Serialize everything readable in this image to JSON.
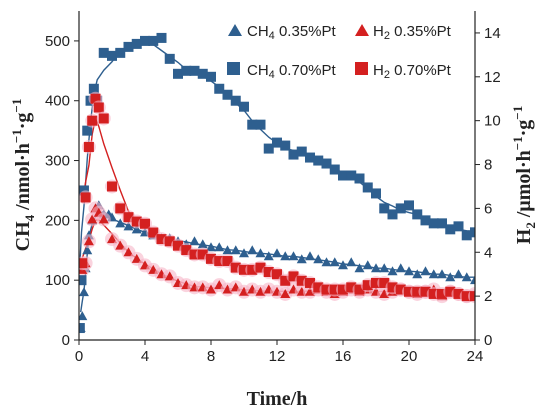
{
  "chart_data": {
    "type": "scatter",
    "x_axis": {
      "label": "Time/h",
      "range": [
        0,
        24
      ],
      "ticks": [
        "0",
        "4",
        "8",
        "12",
        "16",
        "20",
        "24"
      ]
    },
    "y_left": {
      "label_main": "CH",
      "label_sub": "4",
      "label_rest": " /nmol·h",
      "label_sup1": "−1",
      "label_mid": "·g",
      "label_sup2": "−1",
      "range": [
        0,
        550
      ],
      "ticks": [
        "0",
        "100",
        "200",
        "300",
        "400",
        "500"
      ]
    },
    "y_right": {
      "label_main": "H",
      "label_sub": "2",
      "label_rest": " /μmol·h",
      "label_sup1": "−1",
      "label_mid": "·g",
      "label_sup2": "−1",
      "range": [
        0,
        15
      ],
      "ticks": [
        "0",
        "2",
        "4",
        "6",
        "8",
        "10",
        "12",
        "14"
      ]
    },
    "legend": [
      {
        "label": "CH4 0.35%Pt",
        "main": "CH",
        "sub": "4",
        "rest": " 0.35%Pt"
      },
      {
        "label": "H2 0.35%Pt",
        "main": "H",
        "sub": "2",
        "rest": " 0.35%Pt"
      },
      {
        "label": "CH4 0.70%Pt",
        "main": "CH",
        "sub": "4",
        "rest": " 0.70%Pt"
      },
      {
        "label": "H2 0.70%Pt",
        "main": "H",
        "sub": "2",
        "rest": " 0.70%Pt"
      }
    ],
    "legend_placement": "top-right",
    "colors": {
      "ch4": "#2e5f8f",
      "h2": "#d42020",
      "h2_halo": "#f7b6c8"
    },
    "series": [
      {
        "name": "CH4 0.35%Pt",
        "axis": "left",
        "marker": "triangle",
        "color": "#2e5f8f",
        "x": [
          0.1,
          0.2,
          0.3,
          0.4,
          0.5,
          0.6,
          0.8,
          1.0,
          1.2,
          1.5,
          1.8,
          2.0,
          2.5,
          3.0,
          3.5,
          4.0,
          4.5,
          5.0,
          5.5,
          6.0,
          6.5,
          7.0,
          7.5,
          8.0,
          8.5,
          9.0,
          9.5,
          10.0,
          10.5,
          11.0,
          11.5,
          12.0,
          12.5,
          13.0,
          13.5,
          14.0,
          14.5,
          15.0,
          15.5,
          16.0,
          16.5,
          17.0,
          17.5,
          18.0,
          18.5,
          19.0,
          19.5,
          20.0,
          20.5,
          21.0,
          21.5,
          22.0,
          22.5,
          23.0,
          23.5,
          24.0
        ],
        "values": [
          20,
          40,
          80,
          120,
          150,
          175,
          200,
          220,
          225,
          210,
          210,
          205,
          195,
          190,
          185,
          180,
          175,
          170,
          170,
          165,
          160,
          165,
          160,
          155,
          155,
          150,
          150,
          145,
          150,
          145,
          140,
          145,
          140,
          140,
          135,
          140,
          135,
          130,
          130,
          125,
          130,
          120,
          125,
          120,
          120,
          115,
          120,
          115,
          110,
          115,
          110,
          110,
          105,
          110,
          105,
          100
        ]
      },
      {
        "name": "H2 0.35%Pt",
        "axis": "right",
        "marker": "triangle",
        "color": "#d42020",
        "x": [
          0.2,
          0.4,
          0.6,
          0.8,
          1.0,
          1.2,
          1.5,
          2.0,
          2.5,
          3.0,
          3.5,
          4.0,
          4.5,
          5.0,
          5.5,
          6.0,
          6.5,
          7.0,
          7.5,
          8.0,
          8.5,
          9.0,
          9.5,
          10.0,
          10.5,
          11.0,
          11.5,
          12.0,
          12.5,
          13.0,
          13.5,
          14.0,
          14.5,
          15.0,
          15.5,
          16.0,
          16.5,
          17.0,
          17.5,
          18.0,
          18.5,
          19.0,
          19.5,
          20.0,
          20.5,
          21.0,
          21.5,
          22.0,
          22.5,
          23.0,
          23.5,
          24.0
        ],
        "values": [
          3.2,
          3.5,
          4.5,
          5.5,
          6.0,
          5.8,
          5.5,
          4.6,
          4.3,
          4.0,
          3.7,
          3.4,
          3.2,
          3.0,
          2.9,
          2.6,
          2.5,
          2.4,
          2.4,
          2.3,
          2.5,
          2.3,
          2.4,
          2.2,
          2.3,
          2.2,
          2.3,
          2.2,
          2.1,
          2.3,
          2.2,
          2.2,
          2.3,
          2.2,
          2.1,
          2.2,
          2.3,
          2.2,
          2.3,
          2.2,
          2.1,
          2.2,
          2.3,
          2.2,
          2.1,
          2.2,
          2.3,
          2.0,
          2.2,
          2.1,
          2.0,
          2.1
        ]
      },
      {
        "name": "CH4 0.70%Pt",
        "axis": "left",
        "marker": "square",
        "color": "#2e5f8f",
        "x": [
          0.05,
          0.15,
          0.3,
          0.5,
          0.7,
          0.9,
          1.1,
          1.5,
          2.0,
          2.5,
          3.0,
          3.5,
          4.0,
          4.5,
          5.0,
          5.5,
          6.0,
          6.5,
          7.0,
          7.5,
          8.0,
          8.5,
          9.0,
          9.5,
          10.0,
          10.5,
          11.0,
          11.5,
          12.0,
          12.5,
          13.0,
          13.5,
          14.0,
          14.5,
          15.0,
          15.5,
          16.0,
          16.5,
          17.0,
          17.5,
          18.0,
          18.5,
          19.0,
          19.5,
          20.0,
          20.5,
          21.0,
          21.5,
          22.0,
          22.5,
          23.0,
          23.5,
          24.0
        ],
        "values": [
          20,
          100,
          250,
          350,
          400,
          420,
          400,
          480,
          475,
          480,
          490,
          495,
          500,
          500,
          505,
          470,
          445,
          450,
          450,
          445,
          440,
          420,
          410,
          400,
          390,
          360,
          360,
          320,
          330,
          325,
          310,
          315,
          305,
          300,
          295,
          285,
          275,
          275,
          270,
          255,
          245,
          220,
          210,
          220,
          225,
          210,
          200,
          195,
          195,
          185,
          190,
          175,
          180
        ]
      },
      {
        "name": "H2 0.70%Pt",
        "axis": "right",
        "marker": "square",
        "color": "#d42020",
        "x": [
          0.2,
          0.4,
          0.6,
          0.8,
          1.0,
          1.2,
          1.5,
          2.0,
          2.5,
          3.0,
          3.5,
          4.0,
          4.5,
          5.0,
          5.5,
          6.0,
          6.5,
          7.0,
          7.5,
          8.0,
          8.5,
          9.0,
          9.5,
          10.0,
          10.5,
          11.0,
          11.5,
          12.0,
          12.5,
          13.0,
          13.5,
          14.0,
          14.5,
          15.0,
          15.5,
          16.0,
          16.5,
          17.0,
          17.5,
          18.0,
          18.5,
          19.0,
          19.5,
          20.0,
          20.5,
          21.0,
          21.5,
          22.0,
          22.5,
          23.0,
          23.5,
          24.0
        ],
        "values": [
          3.5,
          6.5,
          8.8,
          10.0,
          11.0,
          10.6,
          10.1,
          7.0,
          6.0,
          5.6,
          5.4,
          5.3,
          4.9,
          4.6,
          4.5,
          4.3,
          4.1,
          3.9,
          3.9,
          3.7,
          3.6,
          3.6,
          3.3,
          3.2,
          3.2,
          3.3,
          3.1,
          3.0,
          2.7,
          2.9,
          2.7,
          2.6,
          2.4,
          2.3,
          2.3,
          2.3,
          2.4,
          2.3,
          2.5,
          2.6,
          2.6,
          2.4,
          2.3,
          2.2,
          2.2,
          2.2,
          2.1,
          2.1,
          2.2,
          2.1,
          2.0,
          2.0
        ]
      }
    ]
  }
}
